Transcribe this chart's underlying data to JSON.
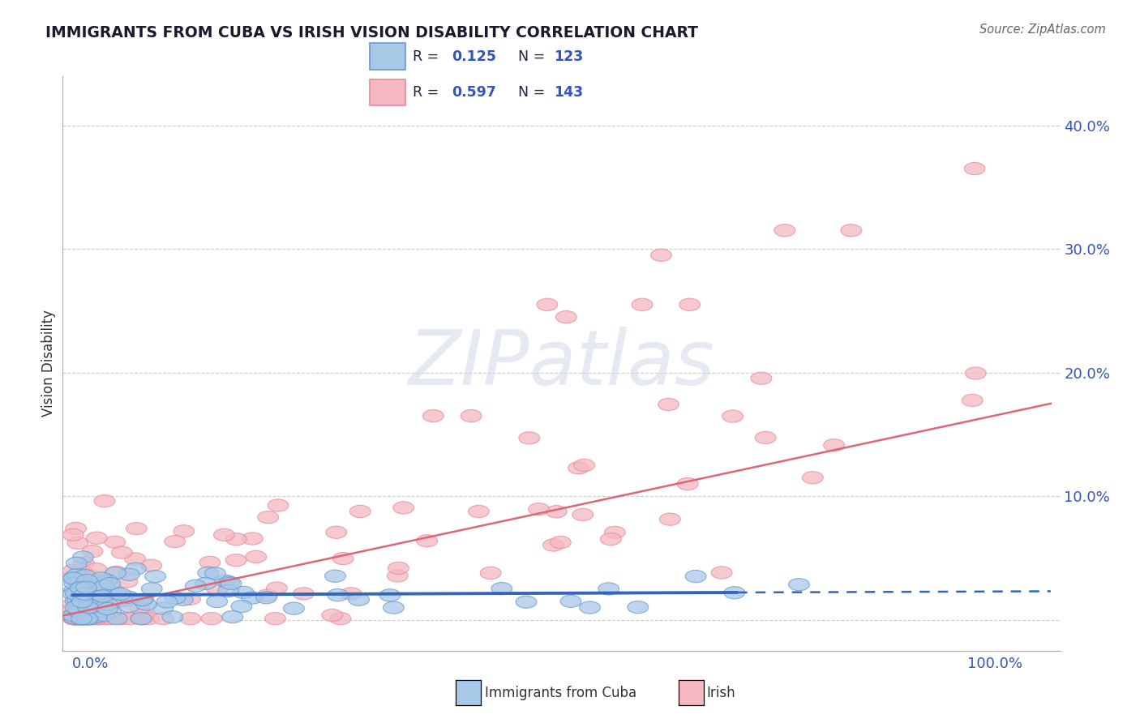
{
  "title": "IMMIGRANTS FROM CUBA VS IRISH VISION DISABILITY CORRELATION CHART",
  "source_text": "Source: ZipAtlas.com",
  "ylabel": "Vision Disability",
  "legend_r1": "R = ",
  "legend_v1": "0.125",
  "legend_n1_label": "N = ",
  "legend_n1": "123",
  "legend_r2": "R = ",
  "legend_v2": "0.597",
  "legend_n2_label": "N = ",
  "legend_n2": "143",
  "color_cuba": "#a8c8e8",
  "color_irish": "#f4b8c0",
  "color_cuba_edge": "#6699cc",
  "color_irish_edge": "#e888a0",
  "color_cuba_line": "#3366bb",
  "color_irish_line": "#dd6677",
  "color_text_blue": "#3355bb",
  "color_text_dark": "#222244",
  "color_grid": "#cccccc",
  "watermark_text": "ZIPatlas",
  "xlim": [
    -0.01,
    1.04
  ],
  "ylim": [
    -0.025,
    0.44
  ],
  "y_ticks": [
    0.0,
    0.1,
    0.2,
    0.3,
    0.4
  ],
  "y_tick_labels": [
    "",
    "10.0%",
    "20.0%",
    "30.0%",
    "40.0%"
  ]
}
